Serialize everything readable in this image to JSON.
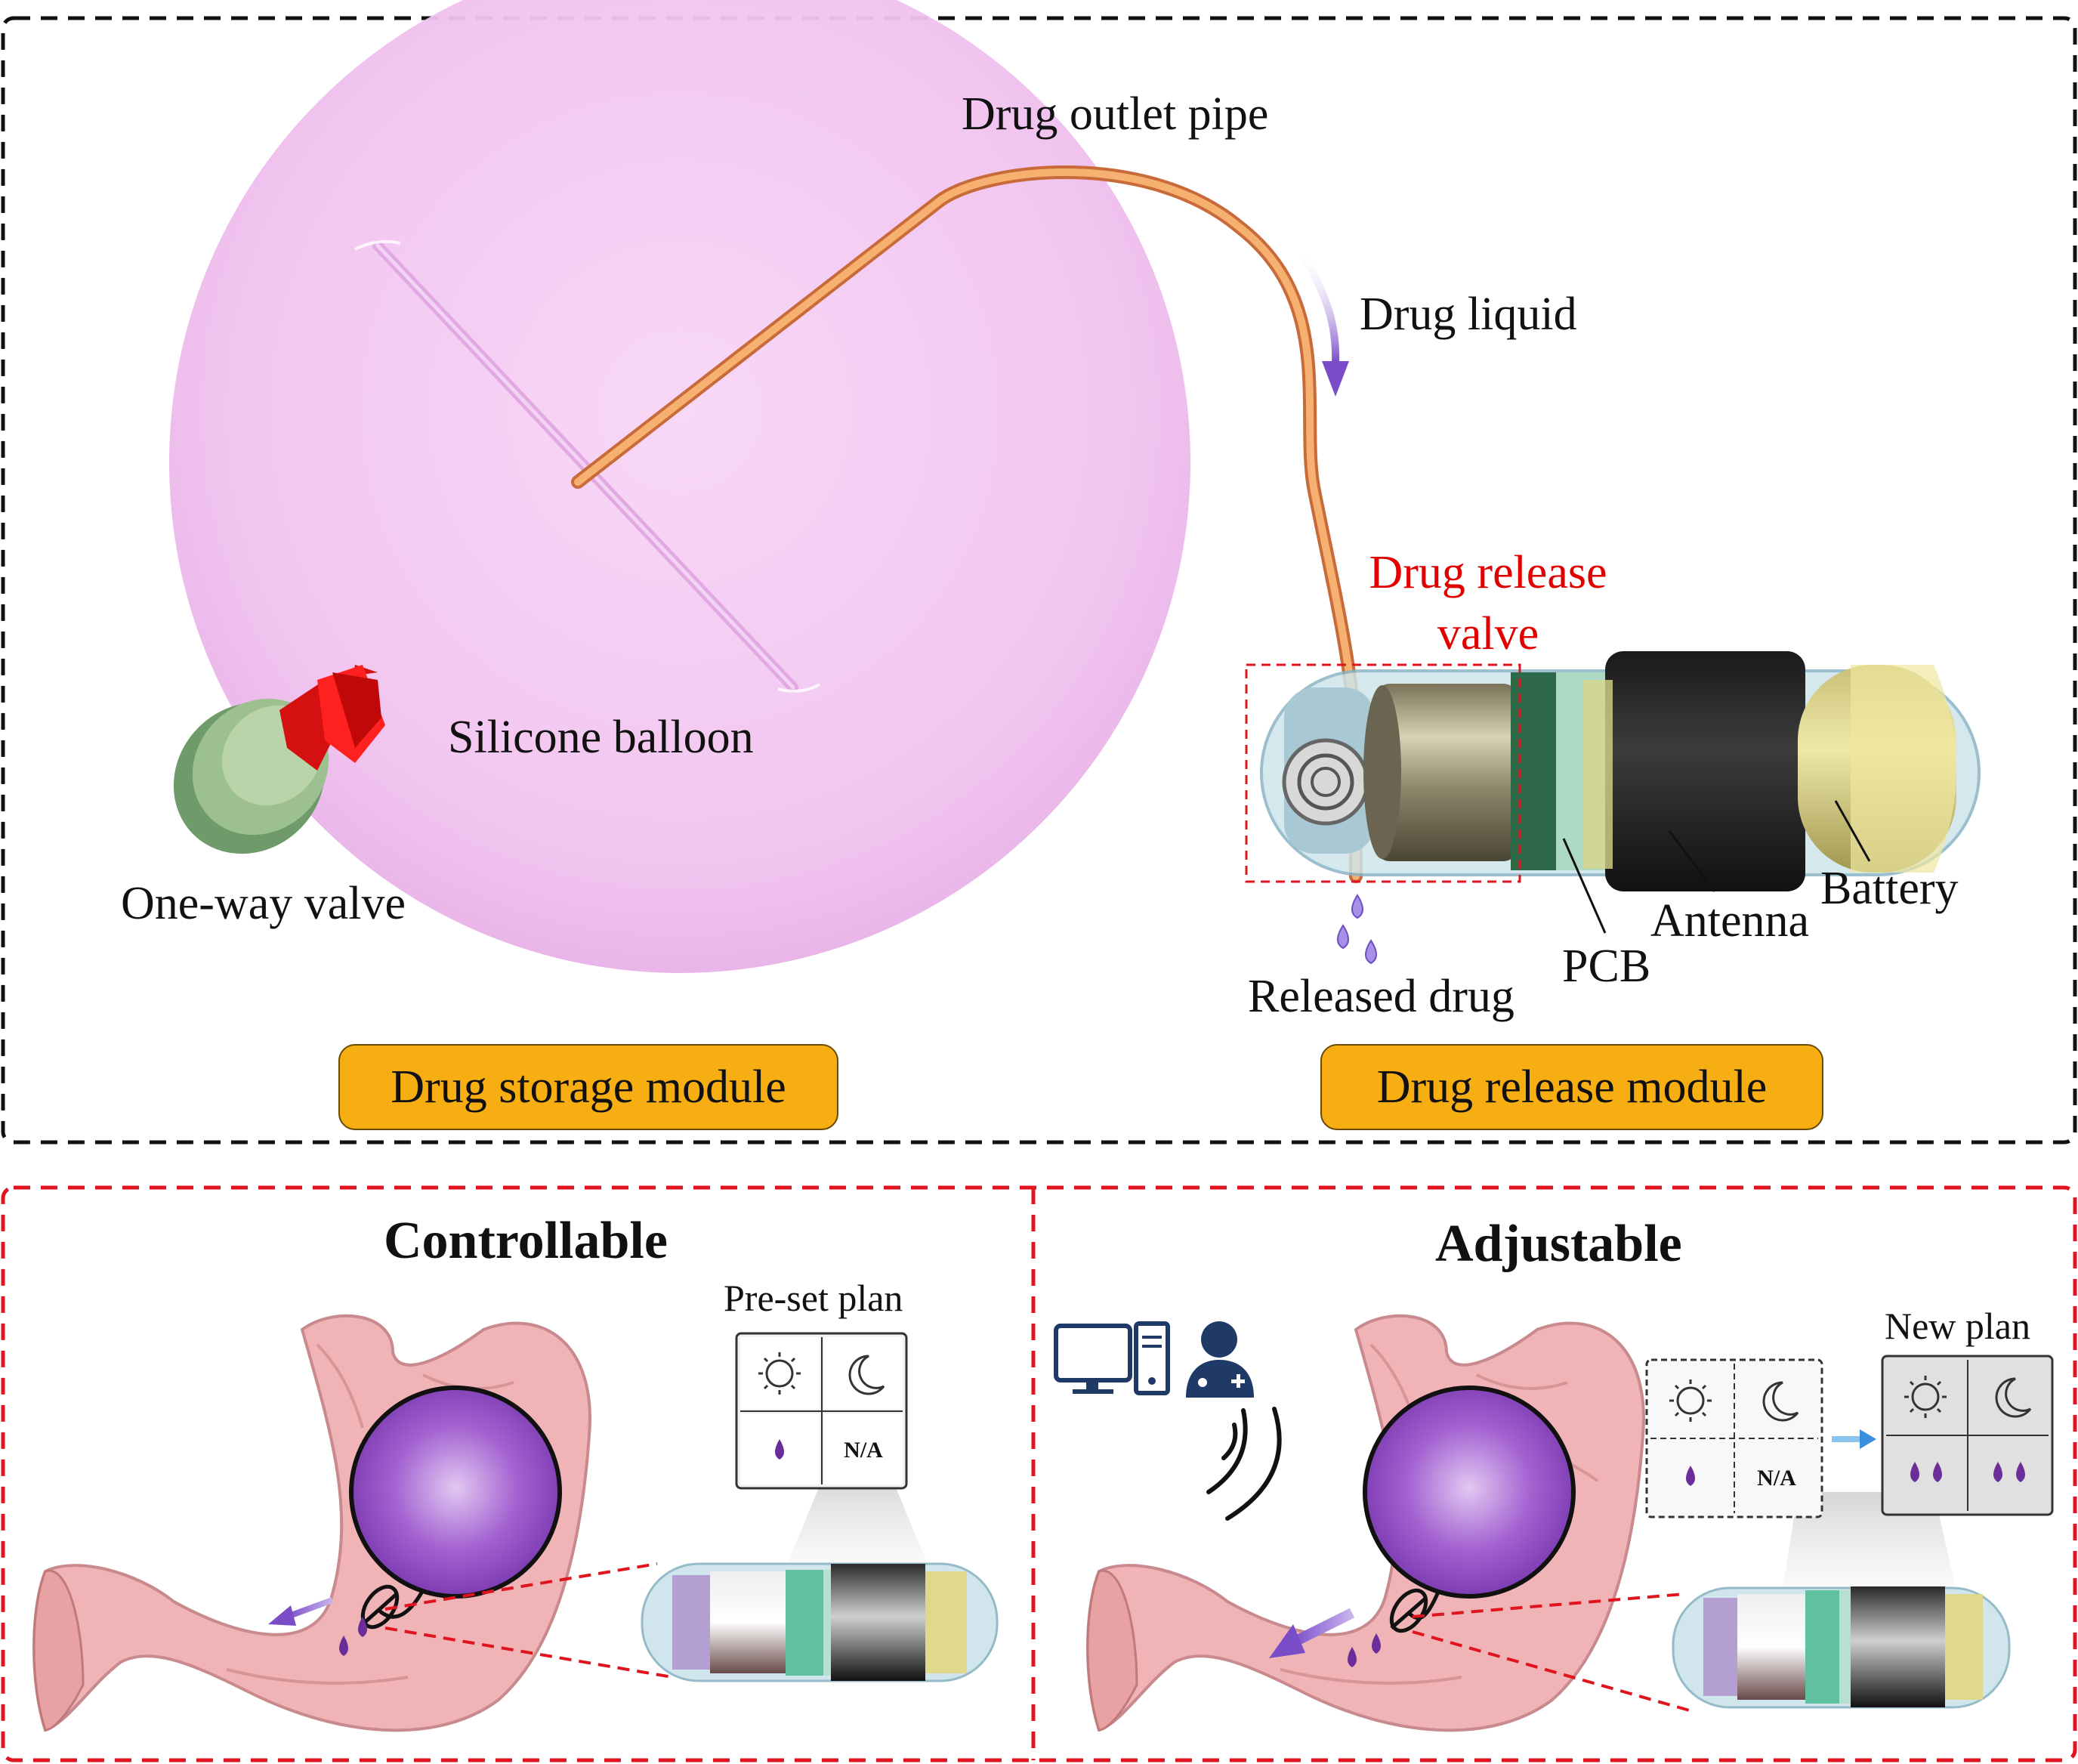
{
  "top_panel": {
    "labels": {
      "outlet_pipe": "Drug outlet pipe",
      "drug_liquid": "Drug liquid",
      "release_valve_line1": "Drug release",
      "release_valve_line2": "valve",
      "silicone_balloon": "Silicone balloon",
      "one_way_valve": "One-way valve",
      "released_drug": "Released drug",
      "pcb": "PCB",
      "antenna": "Antenna",
      "battery": "Battery"
    },
    "modules": {
      "storage": "Drug storage module",
      "release": "Drug release module"
    }
  },
  "bottom_left": {
    "title": "Controllable",
    "plan_label": "Pre-set plan",
    "plan_cells": [
      "sun-icon",
      "moon-icon",
      "drop-icon",
      "N/A"
    ],
    "na_text": "N/A"
  },
  "bottom_right": {
    "title": "Adjustable",
    "new_plan_label": "New plan",
    "old_plan_na": "N/A"
  },
  "colors": {
    "balloon": "#f3c8f1",
    "pipe": "#f0a060",
    "module_fill": "#f7ae12",
    "dash_red": "#e0141e",
    "dash_black": "#111111",
    "stomach": "#f0b4b6",
    "ball": "#9a55c8",
    "drop": "#6a2d9a",
    "arrow": "#8a5cc8",
    "antenna_black": "#1c1c1c",
    "battery_yellow": "#e8e09a"
  }
}
